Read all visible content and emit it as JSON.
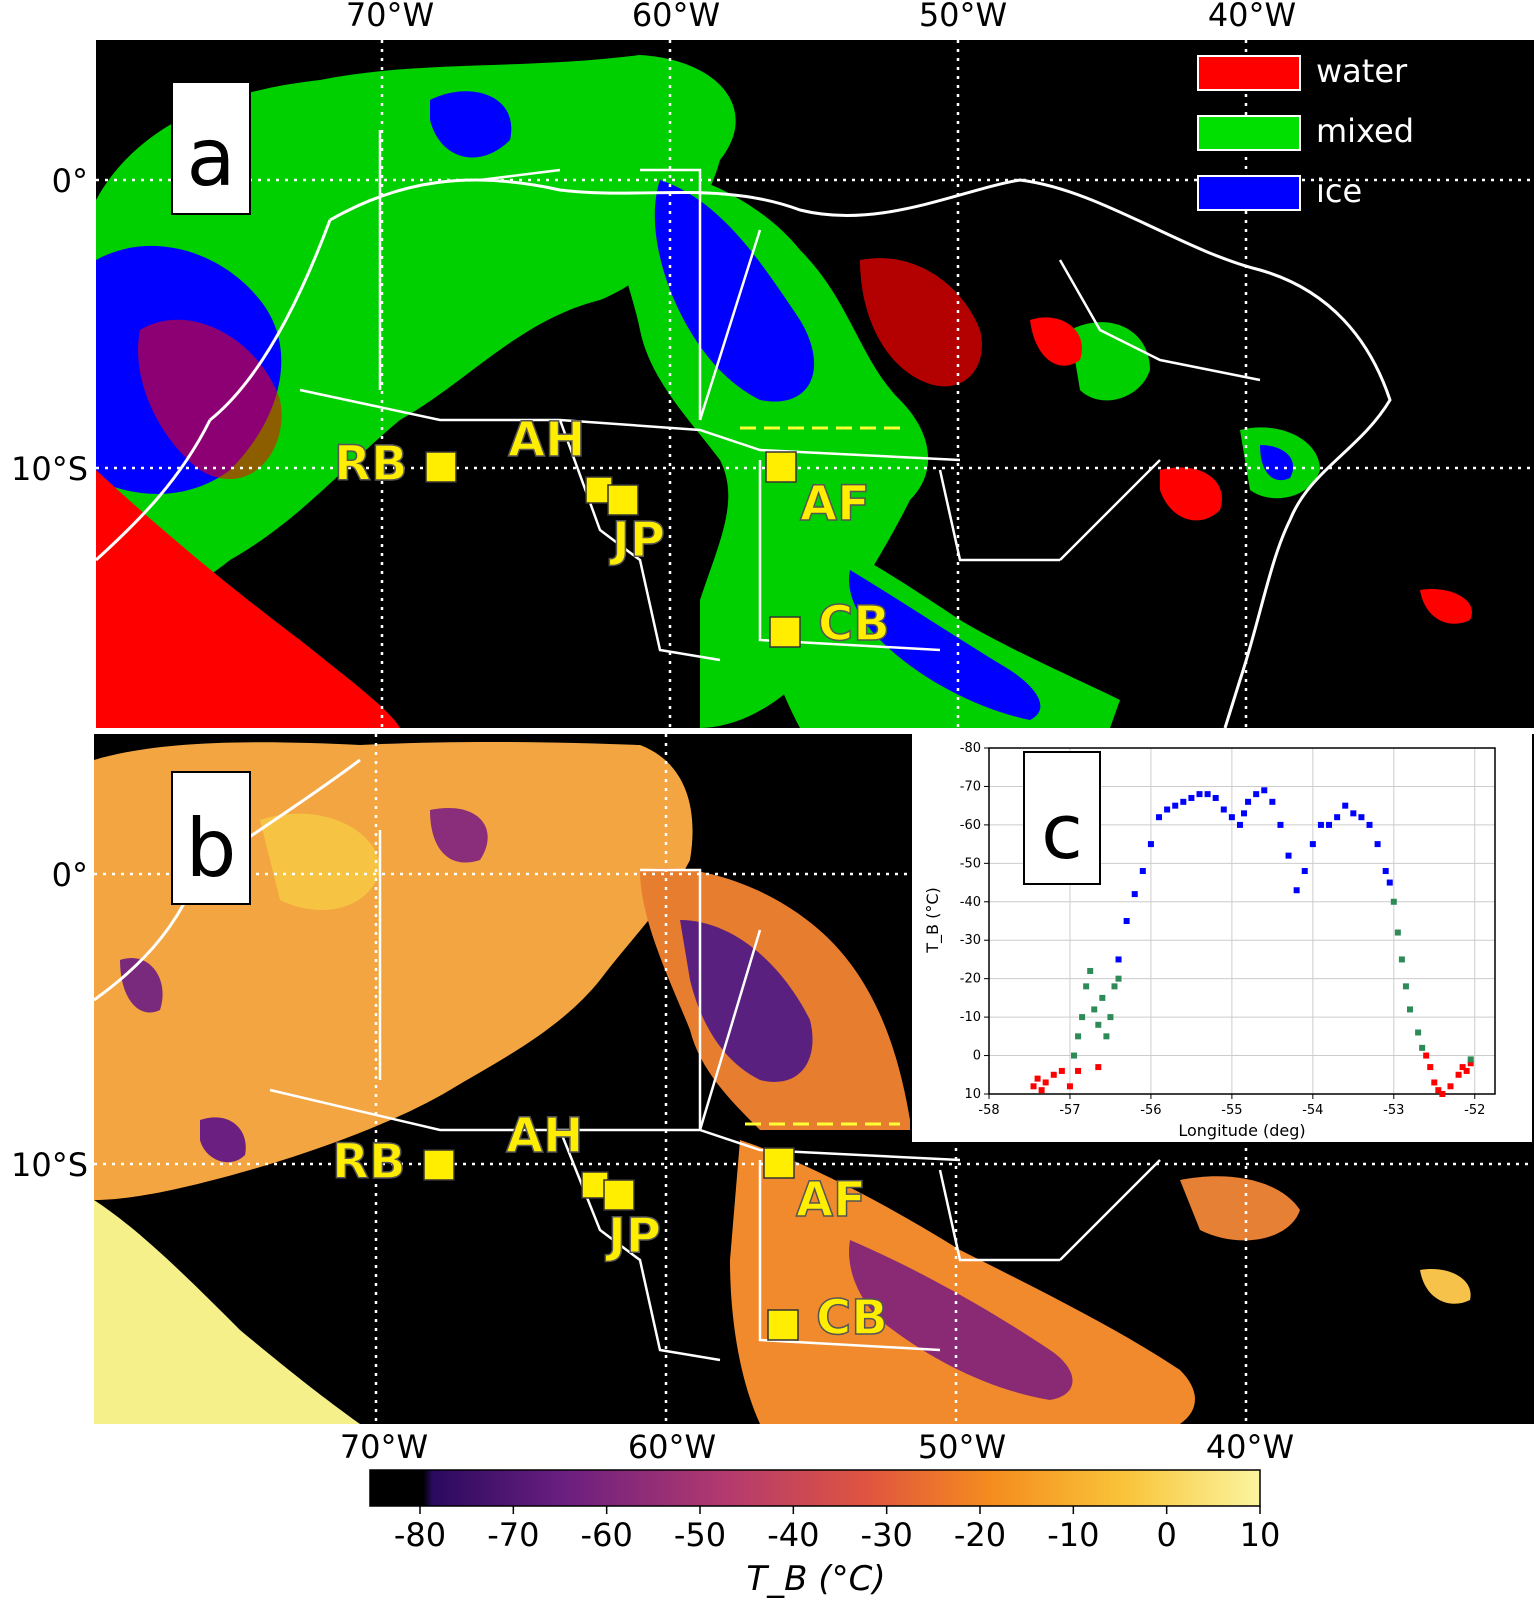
{
  "panel_a": {
    "label": "a",
    "top_lon_labels": [
      "70°W",
      "60°W",
      "50°W",
      "40°W"
    ],
    "lat_labels": [
      "0°",
      "10°S"
    ],
    "legend": [
      {
        "label": "water",
        "color": "#ff0000"
      },
      {
        "label": "mixed",
        "color": "#00e000"
      },
      {
        "label": "ice",
        "color": "#0000ff"
      }
    ]
  },
  "panel_b": {
    "label": "b",
    "bottom_lon_labels": [
      "70°W",
      "60°W",
      "50°W",
      "40°W"
    ],
    "lat_labels": [
      "0°",
      "10°S"
    ]
  },
  "sites": [
    "RB",
    "AH",
    "JP",
    "AF",
    "CB"
  ],
  "colorbar": {
    "ticks": [
      "-80",
      "-70",
      "-60",
      "-50",
      "-40",
      "-30",
      "-20",
      "-10",
      "0",
      "10"
    ],
    "label": "T_B (°C)",
    "colors": [
      "#000000",
      "#2a0a5e",
      "#6b1f80",
      "#b33a6e",
      "#e0553f",
      "#f58d1e",
      "#f9c53a",
      "#fbf5a0"
    ]
  },
  "panel_c": {
    "label": "c",
    "chart_data": {
      "type": "scatter",
      "xlabel": "Longitude (deg)",
      "ylabel": "T_B (°C)",
      "xlim": [
        -58,
        -51.75
      ],
      "ylim": [
        10,
        -80
      ],
      "xticks": [
        "-58",
        "-57",
        "-56",
        "-55",
        "-54",
        "-53",
        "-52"
      ],
      "yticks": [
        "-80",
        "-70",
        "-60",
        "-50",
        "-40",
        "-30",
        "-20",
        "-10",
        "0",
        "10"
      ],
      "grid": true,
      "series": [
        {
          "color": "#ff0000",
          "points": [
            [
              -57.45,
              8
            ],
            [
              -57.4,
              6
            ],
            [
              -57.35,
              9
            ],
            [
              -57.3,
              7
            ],
            [
              -57.2,
              5
            ],
            [
              -57.1,
              4
            ],
            [
              -57.0,
              8
            ],
            [
              -56.9,
              4
            ],
            [
              -56.65,
              3
            ],
            [
              -52.6,
              0
            ],
            [
              -52.55,
              3
            ],
            [
              -52.5,
              7
            ],
            [
              -52.45,
              9
            ],
            [
              -52.4,
              10
            ],
            [
              -52.3,
              8
            ],
            [
              -52.2,
              5
            ],
            [
              -52.15,
              3
            ],
            [
              -52.1,
              4
            ],
            [
              -52.05,
              2
            ]
          ]
        },
        {
          "color": "#2e8b57",
          "points": [
            [
              -56.95,
              0
            ],
            [
              -56.9,
              -5
            ],
            [
              -56.85,
              -10
            ],
            [
              -56.8,
              -18
            ],
            [
              -56.75,
              -22
            ],
            [
              -56.7,
              -12
            ],
            [
              -56.65,
              -8
            ],
            [
              -56.6,
              -15
            ],
            [
              -56.55,
              -5
            ],
            [
              -56.5,
              -10
            ],
            [
              -56.45,
              -18
            ],
            [
              -56.4,
              -20
            ],
            [
              -53.0,
              -40
            ],
            [
              -52.95,
              -32
            ],
            [
              -52.9,
              -25
            ],
            [
              -52.85,
              -18
            ],
            [
              -52.8,
              -12
            ],
            [
              -52.7,
              -6
            ],
            [
              -52.65,
              -2
            ],
            [
              -52.05,
              1
            ]
          ]
        },
        {
          "color": "#0000ff",
          "points": [
            [
              -56.4,
              -25
            ],
            [
              -56.3,
              -35
            ],
            [
              -56.2,
              -42
            ],
            [
              -56.1,
              -48
            ],
            [
              -56.0,
              -55
            ],
            [
              -55.9,
              -62
            ],
            [
              -55.8,
              -64
            ],
            [
              -55.7,
              -65
            ],
            [
              -55.6,
              -66
            ],
            [
              -55.5,
              -67
            ],
            [
              -55.4,
              -68
            ],
            [
              -55.3,
              -68
            ],
            [
              -55.2,
              -67
            ],
            [
              -55.1,
              -64
            ],
            [
              -55.0,
              -62
            ],
            [
              -54.9,
              -60
            ],
            [
              -54.85,
              -63
            ],
            [
              -54.8,
              -66
            ],
            [
              -54.7,
              -68
            ],
            [
              -54.6,
              -69
            ],
            [
              -54.5,
              -66
            ],
            [
              -54.4,
              -60
            ],
            [
              -54.3,
              -52
            ],
            [
              -54.2,
              -43
            ],
            [
              -54.1,
              -48
            ],
            [
              -54.0,
              -55
            ],
            [
              -53.9,
              -60
            ],
            [
              -53.8,
              -60
            ],
            [
              -53.7,
              -62
            ],
            [
              -53.6,
              -65
            ],
            [
              -53.5,
              -63
            ],
            [
              -53.4,
              -62
            ],
            [
              -53.3,
              -60
            ],
            [
              -53.2,
              -55
            ],
            [
              -53.1,
              -48
            ],
            [
              -53.05,
              -45
            ]
          ]
        }
      ]
    }
  }
}
